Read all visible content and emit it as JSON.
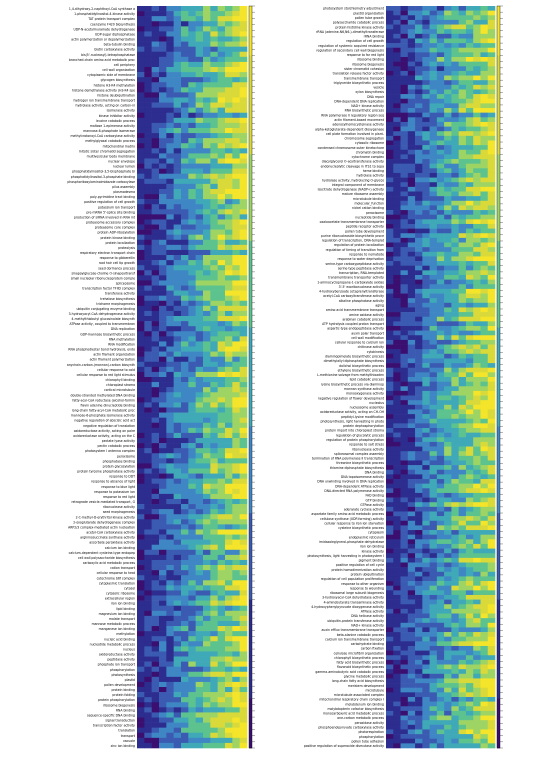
{
  "chart_data": {
    "type": "heatmap",
    "title": "",
    "xlabel": "",
    "ylabel": "",
    "columns": 15,
    "colormap": [
      "#3b0f70",
      "#2c2d8e",
      "#3b5bb2",
      "#3f86c4",
      "#3fa9b8",
      "#5cc28e",
      "#9ed464",
      "#d9d93a",
      "#f4e52a"
    ],
    "panels": [
      {
        "name": "left",
        "rows": [
          "1,4-dihydroxy-2-naphthoyl-CoA synthase a",
          "1-phosphatidylinositol-4-kinase activity",
          "TAT protein transport complex",
          "coenzyme F420 biosynthesis",
          "UDP-N-acetylmuramate dehydrogenase",
          "UDP-sugar diphosphatase",
          "actin polymerization or depolymerization",
          "beta-tubulin binding",
          "biotin carboxylase activity",
          "bis(5'-nucleosyl)-tetraphosphatase",
          "branched-chain amino acid metabolic proc",
          "cell periphery",
          "cell wall organization",
          "cytoplasmic side of membrane",
          "glycogen biosynthesis",
          "histone H3-K4 methylation",
          "histone demethylase activity (H3-K4 spe",
          "histone deubiquitination",
          "hydrogen ion transmembrane transport",
          "hydrolase activity, acting on carbon-ni",
          "isomerase activity",
          "kinase inhibitor activity",
          "leucine catabolic process",
          "maltose 1-epimerase activity",
          "mannose-6-phosphate isomerase",
          "methylcrotonoyl-CoA carboxylase activity",
          "methylglyoxal catabolic process",
          "mitochondrial matrix",
          "mitotic sister chromatid segregation",
          "multivesicular body membrane",
          "nuclear envelope",
          "nuclear lumen",
          "phosphatidylinositol-3,5-bisphosphate bi",
          "phosphatidylinositol-3-phosphate binding",
          "phosphoribosylaminoimidazole carboxylase",
          "pilus assembly",
          "plasmodesma",
          "poly-pyrimidine tract binding",
          "positive regulation of cell growth",
          "potassium ion transport",
          "pre-mRNA 5'-splice site binding",
          "production of siRNA involved in RNA int",
          "proteasome accessory complex",
          "proteasome core complex",
          "protein ADP-ribosylation",
          "protein kinase binding",
          "protein localization",
          "proteolysis",
          "respiratory electron transport chain",
          "response to gibberellin",
          "root hair cell tip growth",
          "seed dormancy process",
          "sinapoylglucose-choline O-sinapoyltransf",
          "small nucleolar ribonucleoprotein comple",
          "spliceosome",
          "transcription factor TFIID complex",
          "transferase activity",
          "trehalose biosynthesis",
          "trichome morphogenesis",
          "ubiquitin conjugating enzyme binding",
          "3-hydroxyacyl-CoA dehydrogenase activity",
          "4-methylthiobutyl glucosinolate biosynth",
          "ATPase activity, coupled to transmembran",
          "DNA replication",
          "GDP-mannose biosynthetic process",
          "RNA methylation",
          "RNA modification",
          "RNA phosphodiester bond hydrolysis, endo",
          "actin filament organization",
          "actin filament polymerization",
          "anychain-carbon-(mannan)-carbon biosynth",
          "cellular response to cold",
          "cellular response to red light stimulus",
          "chlorophyll binding",
          "chloroplast stroma",
          "cortical microtubule",
          "double-stranded methylated DNA binding",
          "fatty-acyl-CoA reductase (alcohol-formin",
          "flavin adenine dinucleotide binding",
          "long-chain fatty-acyl-CoA metabolic proc",
          "mannose-6-phosphate isomerase activity",
          "negative regulation of abscisic acid act",
          "negative regulation of translation",
          "oxidoreductase activity, acting on paire",
          "oxidoreductase activity, acting on the C",
          "pectate lyase activity",
          "pectin catabolic process",
          "photosystem I antenna complex",
          "peroxisome",
          "phosphatase binding",
          "protein glycosylation",
          "protein tyrosine phosphatase activity",
          "response to DDT",
          "response to absence of light",
          "response to blue light",
          "response to potassium ion",
          "response to red light",
          "retrograde vesicle-mediated transport, G",
          "ribonuclease activity",
          "seed morphogenesis",
          "2-C-methyl-D-erythritol kinase activity",
          "2-oxoglutarate dehydrogenase complex",
          "ARP2/3 complex-mediated actin nucleation",
          "acetyl-CoA carboxylase activity",
          "argininosuccinate synthase activity",
          "ascorbate peroxidase activity",
          "calcium ion binding",
          "calcium-dependent cysteine-type endopep",
          "cell wall polysaccharide biosynthesis",
          "carboxylic acid metabolic process",
          "cation transport",
          "cellular response to heat",
          "cytochrome b6f complex",
          "cytoplasmic translation",
          "cytosol",
          "cytosolic ribosome",
          "extracellular region",
          "iron ion binding",
          "lipid binding",
          "magnesium ion binding",
          "malate transport",
          "mannose metabolic process",
          "manganese ion binding",
          "methylation",
          "nucleic acid binding",
          "nucleotide metabolic process",
          "nucleus",
          "oxidoreductase activity",
          "peptidase activity",
          "phosphate ion transport",
          "phosphorylation",
          "photosynthesis",
          "plastid",
          "pollen development",
          "protein binding",
          "protein folding",
          "protein phosphorylation",
          "ribosome biogenesis",
          "RNA binding",
          "sequence-specific DNA binding",
          "signal transduction",
          "transcription factor activity",
          "translation",
          "transport",
          "vacuole",
          "zinc ion binding"
        ]
      },
      {
        "name": "right",
        "rows": [
          "photosystem stoichiometry adjustment",
          "plastid organization",
          "pollen tube growth",
          "polysaccharide catabolic process",
          "protein histidine kinase activity",
          "rRNA (adenine-N6,N6-)-dimethyltransferase",
          "rRNA binding",
          "regulation of cell growth",
          "regulation of systemic acquired resistance",
          "regulation of secondary cell wall biogenesis",
          "response to far red light",
          "ribosome binding",
          "ribosome biogenesis",
          "sister chromatid cohesion",
          "translation release factor activity",
          "transmembrane transport",
          "triglyceride biosynthetic process",
          "vesicle",
          "xylan biosynthesis",
          "DNA repair",
          "DNA-dependent DNA replication",
          "NAD+ kinase activity",
          "RNA biosynthetic process",
          "RNA polymerase II regulatory region seq",
          "actin filament-based movement",
          "adenosylhomocysteinase activity",
          "alpha-ketoglutarate-dependent dioxygenase",
          "cell plate formation involved in plant-",
          "chromosome segregation",
          "cytosolic ribosome",
          "condensed chromosome outer kinetochore",
          "chromatin binding",
          "cytochrome complex",
          "diacylglycerol O-acyltransferase activity",
          "endonucleolytic cleavage in ITS1 to sepa",
          "heme binding",
          "hydrolase activity",
          "hydrolase activity, hydrolyzing O-glycos",
          "integral component of membrane",
          "isocitrate dehydrogenase (NADP+) activity",
          "mature ribosome assembly",
          "microtubule binding",
          "molecular_function",
          "nickel cation binding",
          "peroxisome",
          "nucleotide binding",
          "oxaloacetate transmembrane transporter",
          "peptide receptor activity",
          "pollen tube development",
          "purine ribonucleoside biosynthetic proce",
          "regulation of transcription, DNA-templat",
          "regulation of protein localization",
          "regulation of timing of transition from",
          "response to nematode",
          "response to water deprivation",
          "serine-type carboxypeptidase activity",
          "serine-type peptidase activity",
          "transcription, RNA-templated",
          "transmembrane transporter activity",
          "1-aminocyclopropane-1-carboxylate oxidas",
          "3'-5' exoribonuclease activity",
          "4-hydroxybenzoate octaprenyltransferase",
          "acetyl-CoA carboxyltransferase activity",
          "alkaline phosphatase activity",
          "aging",
          "amino acid transmembrane transport",
          "amine oxidase activity",
          "arabinan catabolic process",
          "ATP hydrolysis coupled proton transport",
          "aspartic-type endopeptidase activity",
          "auxin polar transport",
          "cell wall modification",
          "cellular response to calcium ion",
          "chitinase activity",
          "cytokinesis",
          "diaminopimelate biosynthetic process",
          "dimethylallyl diphosphate biosynthesis",
          "dolichol biosynthetic process",
          "ethylene biosynthetic process",
          "L-methionine salvage from methylthioaden",
          "lipid catabolic process",
          "lysine biosynthetic process via diaminop",
          "mannan synthase activity",
          "monooxygenase activity",
          "negative regulation of flower development",
          "nucleolus",
          "nucleosome assembly",
          "oxidoreductase activity, acting on CH-OH",
          "peptidyl-lysine modification",
          "photosynthesis, light harvesting in photo",
          "protein dephosphorylation",
          "protein import into chloroplast stroma",
          "regulation of glycolytic process",
          "regulation of protein phosphorylation",
          "response to salt stress",
          "ribonuclease activity",
          "spliceosomal complex assembly",
          "termination of RNA polymerase II transcription",
          "threonine biosynthetic process",
          "thiamine diphosphate biosynthesis",
          "DNA binding",
          "DNA topoisomerase activity",
          "DNA unwinding involved in DNA replication",
          "DNA-dependent ATPase activity",
          "DNA-directed RNA polymerase activity",
          "FAD binding",
          "GTP binding",
          "GTPase activity",
          "adenylate cyclase activity",
          "aspartate family amino acid metabolic process",
          "cellulose synthase (UDP-forming) activity",
          "cellular response to iron ion starvation",
          "cysteine biosynthetic process",
          "cytoplasm",
          "endoplasmic reticulum",
          "imidazoleglycerol-phosphate dehydratase",
          "iron ion binding",
          "kinase activity",
          "photosynthesis, light harvesting in photosystem I",
          "pigment binding",
          "positive regulation of cell cycle",
          "protein homodimerization activity",
          "protein ubiquitination",
          "regulation of cell population proliferation",
          "response to other organism",
          "response to wounding",
          "ribosomal large subunit biogenesis",
          "3-hydroxyacyl-CoA dehydratase activity",
          "4-aminobutyrate transaminase activity",
          "4-hydroxyphenylpyruvate dioxygenase activity",
          "ATPase activity",
          "DNA helicase activity",
          "ubiquitin-protein transferase activity",
          "NAD+ kinase activity",
          "auxin efflux transmembrane transporter",
          "beta-alanine catabolic process",
          "calcium ion transmembrane transport",
          "carbohydrate binding",
          "carbon fixation",
          "cellulose microfibril organization",
          "chlorophyll biosynthetic process",
          "fatty acid biosynthetic process",
          "flavonoid biosynthetic process",
          "gamma-aminobutyric acid catabolic process",
          "glycine metabolic process",
          "long-chain fatty acid biosynthesis",
          "meristem development",
          "microtubule",
          "microtubule associated complex",
          "mitochondrial respiratory chain complex I",
          "molybdenum ion binding",
          "molybdopterin cofactor biosynthesis",
          "monocarboxylic acid metabolic process",
          "one-carbon metabolic process",
          "peroxidase activity",
          "phosphoenolpyruvate carboxylase activity",
          "photorespiration",
          "phosphorylation",
          "pollen tube adhesion",
          "positive regulation of superoxide dismutase activity"
        ]
      }
    ],
    "colorbar": {
      "ticks": []
    }
  }
}
